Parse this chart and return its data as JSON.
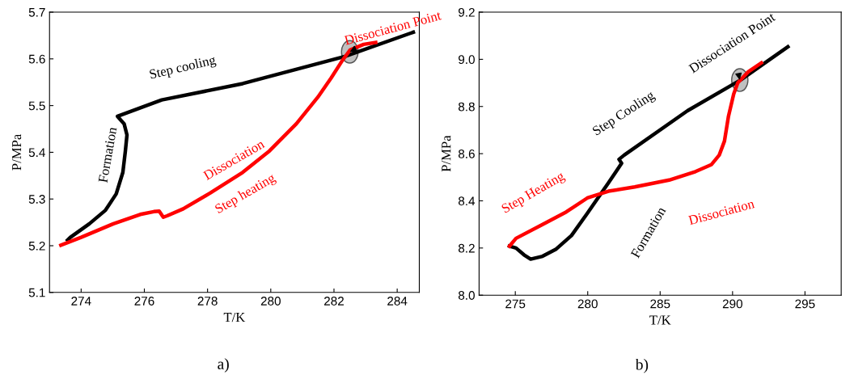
{
  "chart_data": [
    {
      "type": "line",
      "xlabel": "T/K",
      "ylabel": "P/MPa",
      "xlim": [
        273.0,
        284.7
      ],
      "ylim": [
        5.1,
        5.7
      ],
      "xticks": [
        274,
        276,
        278,
        280,
        282,
        284
      ],
      "yticks": [
        5.1,
        5.2,
        5.3,
        5.4,
        5.5,
        5.6,
        5.7
      ],
      "grid": false,
      "marker": "none",
      "line_style": "solid",
      "series": [
        {
          "color": "#000000",
          "x": [
            284.51,
            282.34,
            279.11,
            276.55,
            275.15,
            275.36,
            275.45,
            275.4,
            275.32,
            275.11,
            274.77,
            274.26,
            273.66,
            273.57
          ],
          "values": [
            5.657,
            5.605,
            5.547,
            5.512,
            5.477,
            5.461,
            5.437,
            5.403,
            5.357,
            5.311,
            5.276,
            5.247,
            5.218,
            5.212
          ]
        },
        {
          "color": "#ff0000",
          "x": [
            273.36,
            274.0,
            275.02,
            275.87,
            276.3,
            276.47,
            276.6,
            276.72,
            277.23,
            278.09,
            279.11,
            279.96,
            280.81,
            281.49,
            281.91,
            282.26,
            282.51,
            282.94,
            283.32
          ],
          "values": [
            5.201,
            5.218,
            5.247,
            5.267,
            5.273,
            5.274,
            5.261,
            5.264,
            5.279,
            5.313,
            5.357,
            5.403,
            5.461,
            5.518,
            5.559,
            5.596,
            5.619,
            5.631,
            5.635
          ]
        }
      ],
      "annotations": [
        {
          "text": "Dissociation Point",
          "x": 282.5,
          "y": 5.615
        },
        "Step cooling",
        "Formation",
        "Dissociation",
        "Step heating",
        "a)"
      ]
    },
    {
      "type": "line",
      "xlabel": "T/K",
      "ylabel": "P/MPa",
      "xlim": [
        272.5,
        297.5
      ],
      "ylim": [
        8.0,
        9.2
      ],
      "xticks": [
        275,
        280,
        285,
        290,
        295
      ],
      "yticks": [
        {
          "value": 8.0,
          "label": "8.0"
        },
        {
          "value": 8.2,
          "label": "8.2"
        },
        {
          "value": 8.4,
          "label": "8.4"
        },
        {
          "value": 8.6,
          "label": "8.6"
        },
        {
          "value": 8.8,
          "label": "8.8"
        },
        {
          "value": 9.0,
          "label": "9.0"
        },
        {
          "value": 9.2,
          "label": "9.2"
        }
      ],
      "grid": false,
      "marker": "none",
      "line_style": "solid",
      "series": [
        {
          "color": "#000000",
          "x": [
            293.82,
            290.54,
            286.89,
            282.52,
            282.16,
            282.34,
            281.43,
            279.97,
            278.88,
            277.79,
            276.88,
            276.06,
            275.6,
            275.05,
            274.6
          ],
          "values": [
            9.053,
            8.912,
            8.782,
            8.594,
            8.576,
            8.559,
            8.476,
            8.347,
            8.253,
            8.194,
            8.165,
            8.153,
            8.171,
            8.2,
            8.208
          ]
        },
        {
          "color": "#ff0000",
          "x": [
            274.6,
            275.05,
            276.88,
            278.52,
            279.97,
            281.43,
            283.25,
            285.62,
            287.44,
            288.53,
            289.08,
            289.44,
            289.72,
            290.08,
            290.36,
            291.08,
            291.99
          ],
          "values": [
            8.208,
            8.241,
            8.3,
            8.353,
            8.412,
            8.441,
            8.459,
            8.488,
            8.524,
            8.553,
            8.594,
            8.653,
            8.759,
            8.853,
            8.9,
            8.947,
            8.985
          ]
        }
      ],
      "annotations": [
        {
          "text": "Dissociation Point",
          "x": 290.5,
          "y": 8.912
        },
        "Step Cooling",
        "Formation",
        "Step Heating",
        "Dissociation",
        "b)"
      ]
    }
  ]
}
